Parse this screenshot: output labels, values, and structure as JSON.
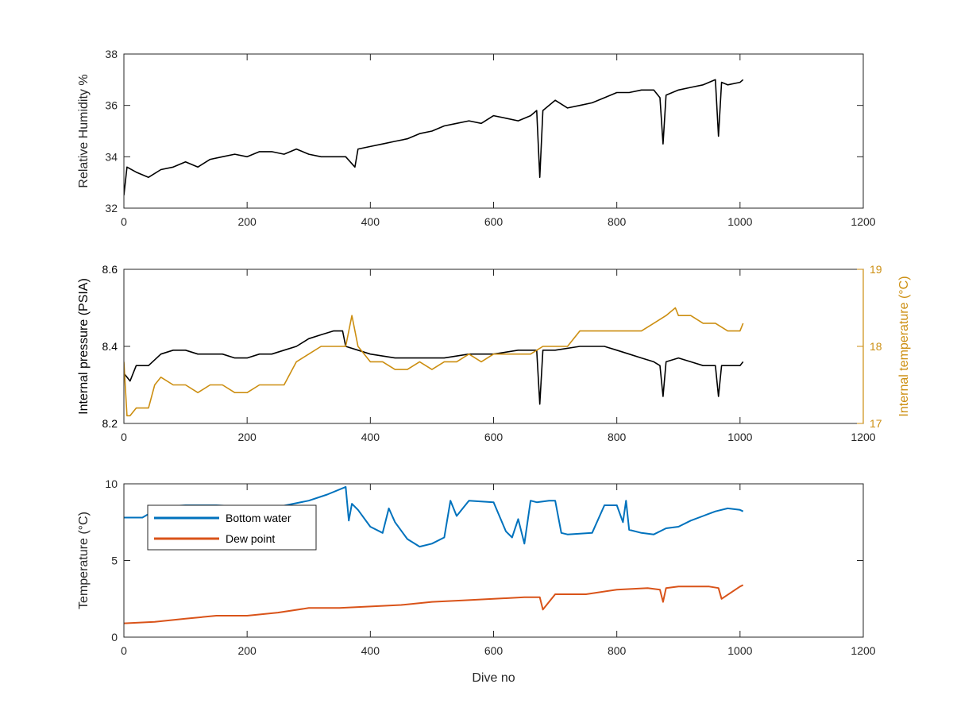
{
  "colors": {
    "axis": "#262626",
    "black_series": "#000000",
    "gold_series": "#CC8E10",
    "blue_series": "#0072BD",
    "orange_series": "#D95319"
  },
  "chart_data": [
    {
      "type": "line",
      "xlabel": "",
      "ylabel": "Relative Humidity %",
      "xlim": [
        0,
        1200
      ],
      "ylim": [
        32,
        38
      ],
      "xticks": [
        0,
        200,
        400,
        600,
        800,
        1000,
        1200
      ],
      "yticks": [
        32,
        34,
        36,
        38
      ],
      "grid": false,
      "series": [
        {
          "color_key": "black_series",
          "x": [
            0,
            5,
            20,
            40,
            60,
            80,
            100,
            120,
            140,
            160,
            180,
            200,
            220,
            240,
            260,
            280,
            300,
            320,
            340,
            360,
            375,
            380,
            400,
            420,
            440,
            460,
            480,
            500,
            520,
            540,
            560,
            580,
            600,
            620,
            640,
            660,
            670,
            675,
            680,
            700,
            720,
            740,
            760,
            780,
            800,
            820,
            840,
            860,
            870,
            875,
            880,
            900,
            920,
            940,
            960,
            965,
            970,
            980,
            1000,
            1005
          ],
          "y": [
            32.5,
            33.6,
            33.4,
            33.2,
            33.5,
            33.6,
            33.8,
            33.6,
            33.9,
            34.0,
            34.1,
            34.0,
            34.2,
            34.2,
            34.1,
            34.3,
            34.1,
            34.0,
            34.0,
            34.0,
            33.6,
            34.3,
            34.4,
            34.5,
            34.6,
            34.7,
            34.9,
            35.0,
            35.2,
            35.3,
            35.4,
            35.3,
            35.6,
            35.5,
            35.4,
            35.6,
            35.8,
            33.2,
            35.8,
            36.2,
            35.9,
            36.0,
            36.1,
            36.3,
            36.5,
            36.5,
            36.6,
            36.6,
            36.3,
            34.5,
            36.4,
            36.6,
            36.7,
            36.8,
            37.0,
            34.8,
            36.9,
            36.8,
            36.9,
            37.0
          ]
        }
      ]
    },
    {
      "type": "line",
      "xlabel": "",
      "ylabel": "Internal pressure (PSIA)",
      "y2label": "Internal temperature (°C)",
      "xlim": [
        0,
        1200
      ],
      "ylim": [
        8.2,
        8.6
      ],
      "y2lim": [
        17,
        19
      ],
      "xticks": [
        0,
        200,
        400,
        600,
        800,
        1000,
        1200
      ],
      "yticks": [
        8.2,
        8.4,
        8.6
      ],
      "y2ticks": [
        17,
        18,
        19
      ],
      "grid": false,
      "series": [
        {
          "axis": "left",
          "color_key": "black_series",
          "x": [
            0,
            10,
            20,
            40,
            60,
            80,
            100,
            120,
            140,
            160,
            180,
            200,
            220,
            240,
            260,
            280,
            300,
            320,
            340,
            355,
            360,
            380,
            400,
            440,
            480,
            520,
            560,
            600,
            640,
            670,
            675,
            680,
            700,
            740,
            780,
            800,
            820,
            840,
            860,
            870,
            875,
            880,
            900,
            920,
            940,
            960,
            965,
            970,
            1000,
            1005
          ],
          "y": [
            8.33,
            8.31,
            8.35,
            8.35,
            8.38,
            8.39,
            8.39,
            8.38,
            8.38,
            8.38,
            8.37,
            8.37,
            8.38,
            8.38,
            8.39,
            8.4,
            8.42,
            8.43,
            8.44,
            8.44,
            8.4,
            8.39,
            8.38,
            8.37,
            8.37,
            8.37,
            8.38,
            8.38,
            8.39,
            8.39,
            8.25,
            8.39,
            8.39,
            8.4,
            8.4,
            8.39,
            8.38,
            8.37,
            8.36,
            8.35,
            8.27,
            8.36,
            8.37,
            8.36,
            8.35,
            8.35,
            8.27,
            8.35,
            8.35,
            8.36
          ]
        },
        {
          "axis": "right",
          "color_key": "gold_series",
          "x": [
            0,
            5,
            10,
            20,
            40,
            50,
            60,
            80,
            100,
            120,
            140,
            160,
            180,
            200,
            220,
            240,
            260,
            280,
            300,
            320,
            340,
            360,
            370,
            380,
            400,
            420,
            440,
            460,
            480,
            500,
            520,
            540,
            560,
            580,
            600,
            620,
            640,
            660,
            680,
            700,
            720,
            740,
            760,
            780,
            800,
            820,
            840,
            860,
            880,
            895,
            900,
            920,
            940,
            960,
            980,
            1000,
            1005
          ],
          "y": [
            17.8,
            17.1,
            17.1,
            17.2,
            17.2,
            17.5,
            17.6,
            17.5,
            17.5,
            17.4,
            17.5,
            17.5,
            17.4,
            17.4,
            17.5,
            17.5,
            17.5,
            17.8,
            17.9,
            18.0,
            18.0,
            18.0,
            18.4,
            18.0,
            17.8,
            17.8,
            17.7,
            17.7,
            17.8,
            17.7,
            17.8,
            17.8,
            17.9,
            17.8,
            17.9,
            17.9,
            17.9,
            17.9,
            18.0,
            18.0,
            18.0,
            18.2,
            18.2,
            18.2,
            18.2,
            18.2,
            18.2,
            18.3,
            18.4,
            18.5,
            18.4,
            18.4,
            18.3,
            18.3,
            18.2,
            18.2,
            18.3
          ]
        }
      ]
    },
    {
      "type": "line",
      "xlabel": "Dive no",
      "ylabel": "Temperature (°C)",
      "xlim": [
        0,
        1200
      ],
      "ylim": [
        0,
        10
      ],
      "xticks": [
        0,
        200,
        400,
        600,
        800,
        1000,
        1200
      ],
      "yticks": [
        0,
        5,
        10
      ],
      "grid": false,
      "legend": "top-left",
      "series": [
        {
          "name": "Bottom water",
          "color_key": "blue_series",
          "x": [
            0,
            30,
            60,
            100,
            150,
            200,
            250,
            300,
            330,
            360,
            365,
            370,
            380,
            400,
            420,
            430,
            440,
            460,
            480,
            500,
            520,
            530,
            540,
            560,
            600,
            620,
            630,
            640,
            650,
            660,
            670,
            690,
            700,
            710,
            720,
            760,
            780,
            800,
            810,
            815,
            820,
            840,
            860,
            880,
            900,
            920,
            940,
            960,
            980,
            1000,
            1005
          ],
          "y": [
            7.8,
            7.8,
            8.5,
            8.6,
            8.6,
            8.5,
            8.5,
            8.9,
            9.3,
            9.8,
            7.6,
            8.7,
            8.3,
            7.2,
            6.8,
            8.4,
            7.5,
            6.4,
            5.9,
            6.1,
            6.5,
            8.9,
            7.9,
            8.9,
            8.8,
            6.9,
            6.5,
            7.7,
            6.1,
            8.9,
            8.8,
            8.9,
            8.9,
            6.8,
            6.7,
            6.8,
            8.6,
            8.6,
            7.5,
            8.9,
            7.0,
            6.8,
            6.7,
            7.1,
            7.2,
            7.6,
            7.9,
            8.2,
            8.4,
            8.3,
            8.2
          ]
        },
        {
          "name": "Dew point",
          "color_key": "orange_series",
          "x": [
            0,
            50,
            100,
            150,
            200,
            250,
            300,
            350,
            400,
            450,
            500,
            550,
            600,
            650,
            675,
            680,
            700,
            750,
            800,
            850,
            870,
            875,
            880,
            900,
            950,
            965,
            970,
            1000,
            1005
          ],
          "y": [
            0.9,
            1.0,
            1.2,
            1.4,
            1.4,
            1.6,
            1.9,
            1.9,
            2.0,
            2.1,
            2.3,
            2.4,
            2.5,
            2.6,
            2.6,
            1.8,
            2.8,
            2.8,
            3.1,
            3.2,
            3.1,
            2.3,
            3.2,
            3.3,
            3.3,
            3.2,
            2.5,
            3.3,
            3.4
          ]
        }
      ]
    }
  ]
}
